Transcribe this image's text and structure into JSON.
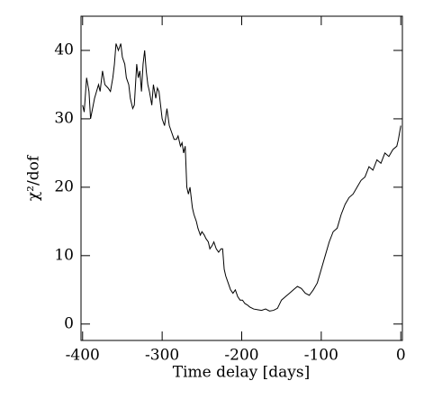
{
  "chart_data": {
    "type": "line",
    "x_label": "Time delay [days]",
    "y_label": "χ²/dof",
    "x": [
      -400,
      -398,
      -395,
      -392,
      -390,
      -385,
      -380,
      -378,
      -375,
      -372,
      -368,
      -365,
      -362,
      -360,
      -358,
      -355,
      -352,
      -350,
      -347,
      -345,
      -342,
      -340,
      -337,
      -335,
      -332,
      -330,
      -328,
      -326,
      -324,
      -322,
      -320,
      -318,
      -316,
      -313,
      -311,
      -308,
      -306,
      -304,
      -302,
      -300,
      -297,
      -294,
      -291,
      -288,
      -285,
      -282,
      -280,
      -277,
      -275,
      -273,
      -271,
      -269,
      -267,
      -265,
      -262,
      -260,
      -257,
      -255,
      -252,
      -250,
      -247,
      -245,
      -242,
      -240,
      -237,
      -235,
      -232,
      -229,
      -226,
      -224,
      -222,
      -220,
      -217,
      -214,
      -211,
      -208,
      -205,
      -202,
      -199,
      -196,
      -193,
      -190,
      -185,
      -180,
      -175,
      -170,
      -165,
      -160,
      -155,
      -150,
      -145,
      -140,
      -135,
      -130,
      -125,
      -120,
      -115,
      -110,
      -105,
      -100,
      -95,
      -90,
      -85,
      -80,
      -75,
      -70,
      -65,
      -60,
      -55,
      -50,
      -45,
      -40,
      -35,
      -30,
      -25,
      -20,
      -15,
      -10,
      -5,
      -3,
      0
    ],
    "series": [
      {
        "color": "#000000",
        "values": [
          32,
          31,
          36,
          34,
          30,
          33,
          35,
          34,
          37,
          35,
          34.5,
          34,
          36,
          38,
          41,
          40,
          41,
          39,
          38,
          36,
          35,
          33,
          31.5,
          32,
          38,
          36,
          37,
          34,
          38,
          40,
          37,
          35,
          34,
          32,
          35,
          33,
          34.5,
          34,
          32,
          30,
          29,
          31.5,
          29,
          28,
          27,
          27,
          27.5,
          26,
          26.5,
          25,
          26,
          20,
          19,
          20,
          17,
          16,
          15,
          14,
          13,
          13.5,
          13,
          12.5,
          12,
          11,
          11.5,
          12,
          11,
          10.5,
          11,
          11,
          8,
          7,
          6,
          5,
          4.5,
          5,
          4,
          3.5,
          3.5,
          3,
          2.8,
          2.5,
          2.2,
          2.1,
          2,
          2.2,
          1.9,
          2,
          2.3,
          3.5,
          4,
          4.5,
          5,
          5.5,
          5.2,
          4.5,
          4.2,
          5,
          6,
          8,
          10,
          12,
          13.5,
          14,
          16,
          17.5,
          18.5,
          19,
          20,
          21,
          21.5,
          23,
          22.5,
          24,
          23.5,
          25,
          24.5,
          25.5,
          26,
          27,
          29
        ]
      }
    ],
    "xlim": [
      -402,
      2
    ],
    "ylim": [
      -2.4,
      45
    ],
    "xticks": [
      -400,
      -300,
      -200,
      -100,
      0
    ],
    "yticks": [
      0,
      10,
      20,
      30,
      40
    ]
  }
}
